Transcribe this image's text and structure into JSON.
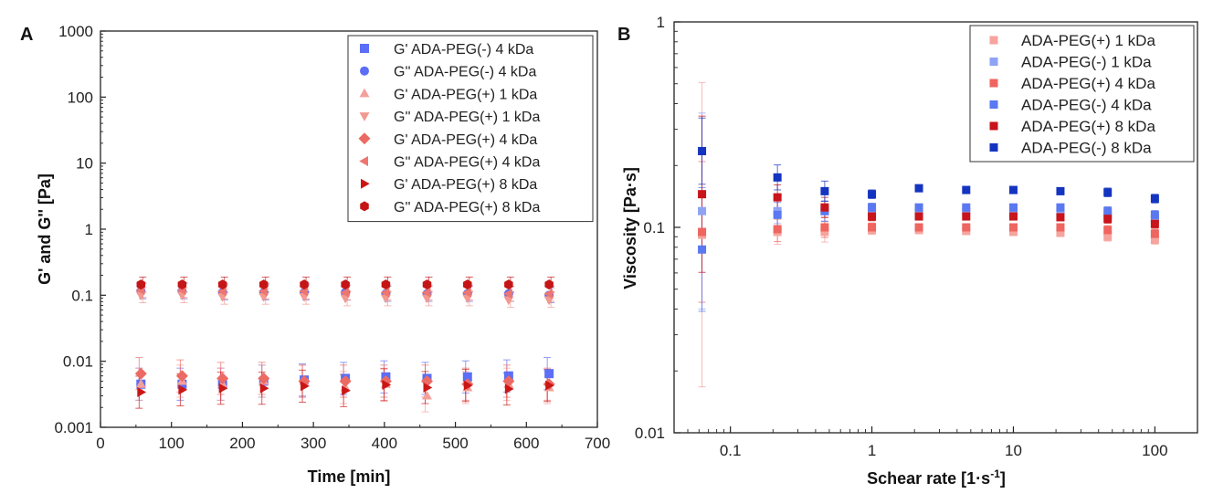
{
  "chart_data": [
    {
      "panel": "A",
      "type": "scatter",
      "title": "",
      "xlabel": "Time [min]",
      "ylabel": "G' and G'' [Pa]",
      "xscale": "linear",
      "yscale": "log",
      "xlim": [
        0,
        700
      ],
      "ylim": [
        0.001,
        1000
      ],
      "xticks": [
        0,
        100,
        200,
        300,
        400,
        500,
        600,
        700
      ],
      "yticks": [
        0.001,
        0.01,
        0.1,
        1,
        10,
        100,
        1000
      ],
      "xtick_labels": [
        "0",
        "100",
        "200",
        "300",
        "400",
        "500",
        "600",
        "700"
      ],
      "ytick_labels": [
        "0.001",
        "0.01",
        "0.1",
        "1",
        "10",
        "100",
        "1000"
      ],
      "legend_position": "top-right",
      "x": [
        57,
        115,
        172,
        230,
        287,
        345,
        402,
        460,
        517,
        575,
        632
      ],
      "series": [
        {
          "name": "G' ADA-PEG(-)  4 kDa",
          "marker": "square",
          "color": "#5b6ef5",
          "values": [
            0.0045,
            0.0045,
            0.0045,
            0.005,
            0.0052,
            0.0055,
            0.0058,
            0.0055,
            0.0058,
            0.006,
            0.0065
          ]
        },
        {
          "name": "G'' ADA-PEG(-)  4 kDa",
          "marker": "circle",
          "color": "#5b6ef5",
          "values": [
            0.115,
            0.115,
            0.11,
            0.11,
            0.11,
            0.11,
            0.105,
            0.105,
            0.105,
            0.105,
            0.1
          ]
        },
        {
          "name": "G' ADA-PEG(+) 1 kDa",
          "marker": "triangle-up",
          "color": "#f4a09a",
          "values": [
            0.0045,
            0.005,
            0.0045,
            0.005,
            0.005,
            0.004,
            0.0045,
            0.003,
            0.004,
            0.0045,
            0.004
          ]
        },
        {
          "name": "G'' ADA-PEG(+) 1 kDa",
          "marker": "triangle-down",
          "color": "#f29990",
          "values": [
            0.1,
            0.1,
            0.095,
            0.095,
            0.095,
            0.09,
            0.09,
            0.09,
            0.09,
            0.085,
            0.085
          ]
        },
        {
          "name": "G' ADA-PEG(+)  4 kDa",
          "marker": "diamond",
          "color": "#ec6a64",
          "values": [
            0.0065,
            0.006,
            0.0055,
            0.0055,
            0.005,
            0.005,
            0.005,
            0.005,
            0.0045,
            0.005,
            0.0045
          ]
        },
        {
          "name": "G'' ADA-PEG(+) 4 kDa",
          "marker": "triangle-left",
          "color": "#ee7570",
          "values": [
            0.12,
            0.12,
            0.115,
            0.115,
            0.115,
            0.11,
            0.11,
            0.11,
            0.11,
            0.105,
            0.105
          ]
        },
        {
          "name": "G' ADA-PEG(+)  8 kDa",
          "marker": "triangle-right",
          "color": "#cc1616",
          "values": [
            0.0034,
            0.0037,
            0.0039,
            0.0039,
            0.0042,
            0.0036,
            0.0044,
            0.004,
            0.0043,
            0.0038,
            0.0043
          ]
        },
        {
          "name": "G'' ADA-PEG(+) 8 kDa",
          "marker": "hexagon",
          "color": "#c41616",
          "values": [
            0.145,
            0.145,
            0.145,
            0.145,
            0.145,
            0.145,
            0.145,
            0.145,
            0.145,
            0.145,
            0.145
          ]
        }
      ]
    },
    {
      "panel": "B",
      "type": "scatter",
      "title": "",
      "xlabel": "Schear rate [1·s",
      "xlabel_sup": "-1",
      "xlabel_end": "]",
      "ylabel": "Viscosity [Pa·s]",
      "xscale": "log",
      "yscale": "log",
      "xlim": [
        0.04,
        200
      ],
      "ylim": [
        0.01,
        1
      ],
      "xticks": [
        0.1,
        1,
        10,
        100
      ],
      "yticks": [
        0.01,
        0.1,
        1
      ],
      "xtick_labels": [
        "0.1",
        "1",
        "10",
        "100"
      ],
      "ytick_labels": [
        "0.01",
        "0.1",
        "1"
      ],
      "legend_position": "top-right",
      "x": [
        0.063,
        0.215,
        0.464,
        1.0,
        2.15,
        4.64,
        10.0,
        21.5,
        46.4,
        100
      ],
      "series": [
        {
          "name": "ADA-PEG(+) 1 kDa",
          "marker": "square",
          "color": "#f6a49e",
          "values": [
            0.092,
            0.095,
            0.095,
            0.097,
            0.097,
            0.096,
            0.095,
            0.094,
            0.09,
            0.087
          ]
        },
        {
          "name": "ADA-PEG(-)  1 kDa",
          "marker": "square",
          "color": "#8fa3f5",
          "values": [
            0.12,
            0.12,
            0.12,
            0.12,
            0.12,
            0.12,
            0.12,
            0.12,
            0.115,
            0.11
          ]
        },
        {
          "name": "ADA-PEG(+) 4 kDa",
          "marker": "square",
          "color": "#ef6560",
          "values": [
            0.095,
            0.098,
            0.1,
            0.1,
            0.1,
            0.1,
            0.1,
            0.1,
            0.097,
            0.093
          ]
        },
        {
          "name": "ADA-PEG(-)  4 kDa",
          "marker": "square",
          "color": "#5a78f0",
          "values": [
            0.078,
            0.115,
            0.12,
            0.125,
            0.125,
            0.125,
            0.125,
            0.125,
            0.12,
            0.115
          ]
        },
        {
          "name": "ADA-PEG(+) 8 kDa",
          "marker": "square",
          "color": "#c8141b",
          "values": [
            0.145,
            0.14,
            0.125,
            0.113,
            0.113,
            0.113,
            0.113,
            0.112,
            0.11,
            0.104
          ]
        },
        {
          "name": "ADA-PEG(-)  8 kDa",
          "marker": "square",
          "color": "#1434c0",
          "values": [
            0.235,
            0.175,
            0.15,
            0.145,
            0.155,
            0.152,
            0.152,
            0.15,
            0.148,
            0.138
          ]
        }
      ]
    }
  ]
}
